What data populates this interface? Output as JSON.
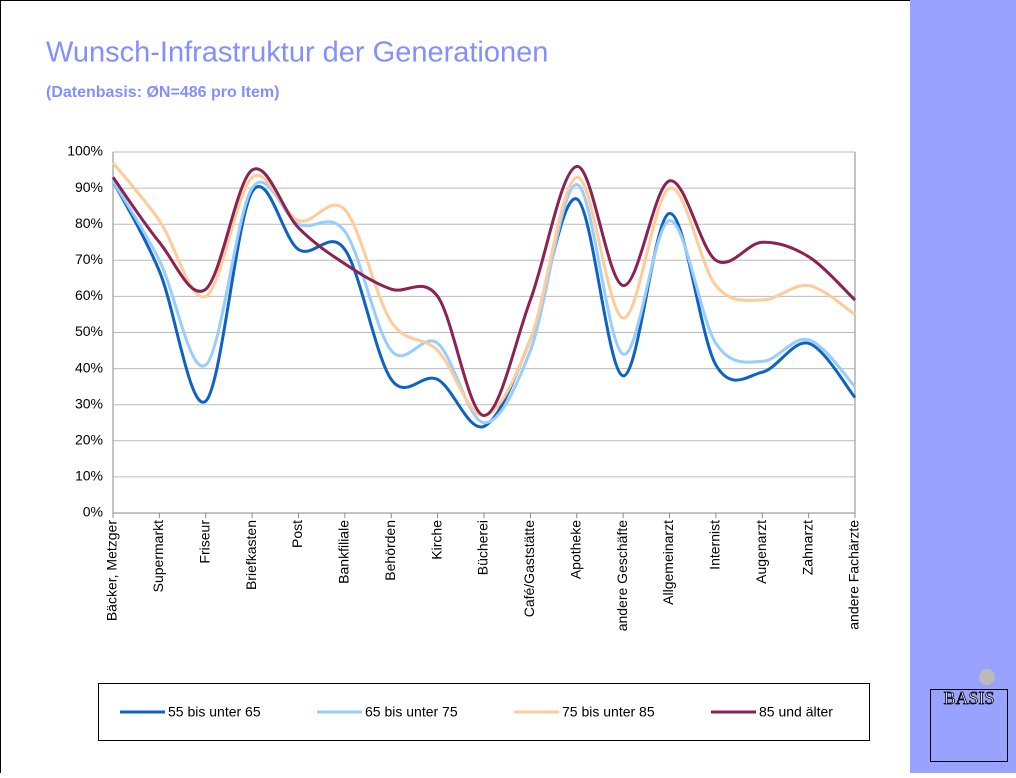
{
  "chart_data": {
    "type": "line",
    "title": "Wunsch-Infrastruktur der Generationen",
    "subtitle": "(Datenbasis: ØN=486 pro Item)",
    "logo": "BASIS",
    "categories": [
      "Bäcker, Metzger",
      "Supermarkt",
      "Friseur",
      "Briefkasten",
      "Post",
      "Bankfiliale",
      "Behörden",
      "Kirche",
      "Bücherei",
      "Café/Gaststätte",
      "Apotheke",
      "andere Geschäfte",
      "Allgemeinarzt",
      "Internist",
      "Augenarzt",
      "Zahnarzt",
      "andere Fachärzte"
    ],
    "series": [
      {
        "name": "55 bis unter 65",
        "color": "#0d63c4",
        "values": [
          92,
          67,
          31,
          89,
          73,
          73,
          37,
          37,
          24,
          48,
          87,
          38,
          83,
          41,
          39,
          47,
          32
        ]
      },
      {
        "name": "65 bis unter 75",
        "color": "#99ccff",
        "values": [
          92,
          70,
          41,
          90,
          80,
          78,
          45,
          47,
          25,
          45,
          91,
          44,
          81,
          47,
          42,
          48,
          35
        ]
      },
      {
        "name": "75 bis unter 85",
        "color": "#ffcc99",
        "values": [
          97,
          81,
          60,
          93,
          81,
          84,
          53,
          45,
          27,
          48,
          93,
          54,
          90,
          63,
          59,
          63,
          55
        ]
      },
      {
        "name": "85 und älter",
        "color": "#8b2252",
        "values": [
          93,
          75,
          62,
          95,
          79,
          69,
          62,
          60,
          27,
          59,
          96,
          63,
          92,
          70,
          75,
          71,
          59
        ]
      }
    ],
    "ylim": [
      0,
      100
    ],
    "yticks": [
      {
        "value": 0,
        "label": "0%"
      },
      {
        "value": 10,
        "label": "10%"
      },
      {
        "value": 20,
        "label": "20%"
      },
      {
        "value": 30,
        "label": "30%"
      },
      {
        "value": 40,
        "label": "40%"
      },
      {
        "value": 50,
        "label": "50%"
      },
      {
        "value": 60,
        "label": "60%"
      },
      {
        "value": 70,
        "label": "70%"
      },
      {
        "value": 80,
        "label": "80%"
      },
      {
        "value": 90,
        "label": "90%"
      },
      {
        "value": 100,
        "label": "100%"
      }
    ],
    "grid": true,
    "legend": "bottom"
  }
}
